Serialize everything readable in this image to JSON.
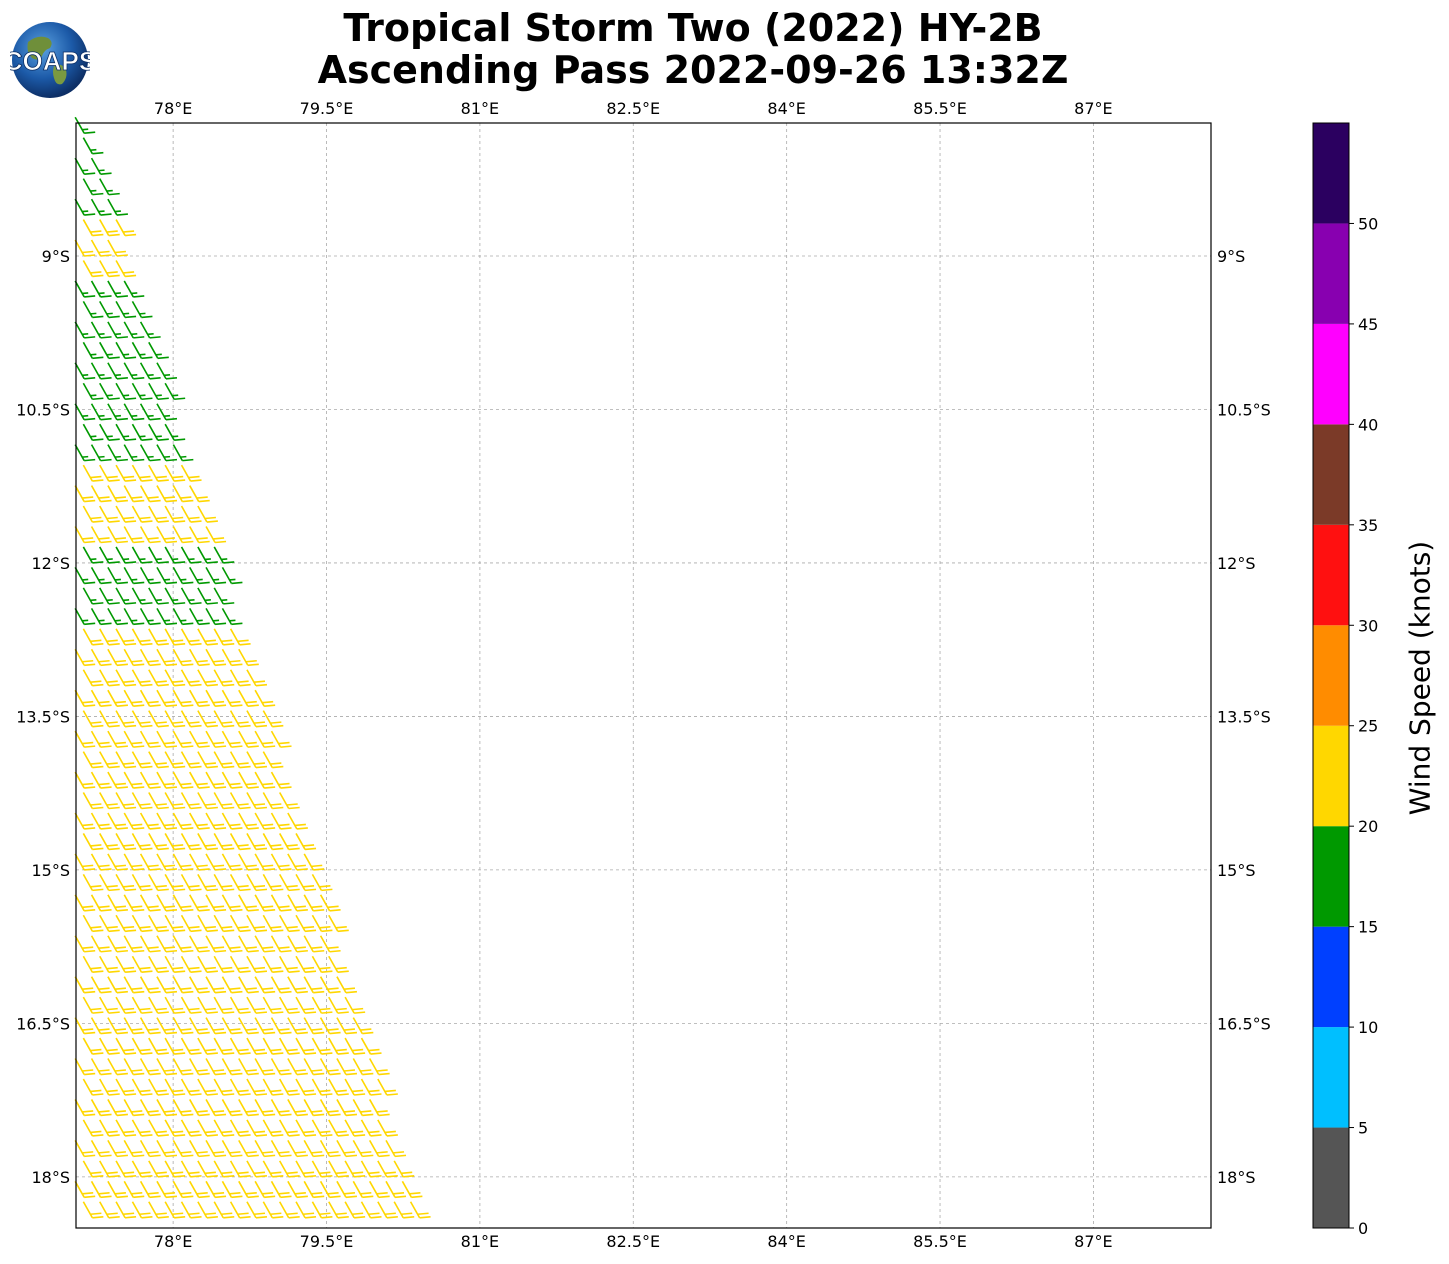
{
  "title": {
    "line1": "Tropical Storm Two (2022) HY-2B",
    "line2": "Ascending Pass 2022-09-26 13:32Z"
  },
  "logo": {
    "text": "COAPS",
    "icon": "globe-icon"
  },
  "chart_data": {
    "type": "wind-barb-map",
    "title": "Tropical Storm Two (2022) HY-2B Ascending Pass 2022-09-26 13:32Z",
    "xlabel": "",
    "ylabel": "",
    "lon_range": [
      77.05,
      88.15
    ],
    "lat_range": [
      -18.5,
      -7.7
    ],
    "lon_ticks": [
      78,
      79.5,
      81,
      82.5,
      84,
      85.5,
      87
    ],
    "lon_tick_labels": [
      "78°E",
      "79.5°E",
      "81°E",
      "82.5°E",
      "84°E",
      "85.5°E",
      "87°E"
    ],
    "lat_ticks": [
      -9,
      -10.5,
      -12,
      -13.5,
      -15,
      -16.5,
      -18
    ],
    "lat_tick_labels": [
      "9°S",
      "10.5°S",
      "12°S",
      "13.5°S",
      "15°S",
      "16.5°S",
      "18°S"
    ],
    "grid": true,
    "swath_edge": [
      [
        -7.7,
        77.2
      ],
      [
        -18.5,
        80.5
      ]
    ],
    "barb_direction": "southeasterly (barbs point toward southeast)",
    "wind_regions": [
      {
        "lat_from": -7.7,
        "lat_to": -8.7,
        "speed_knots": 17,
        "color": "#009900"
      },
      {
        "lat_from": -8.7,
        "lat_to": -9.2,
        "speed_knots": 22,
        "color": "#ffd700"
      },
      {
        "lat_from": -9.2,
        "lat_to": -11.0,
        "speed_knots": 18,
        "color": "#009900"
      },
      {
        "lat_from": -11.0,
        "lat_to": -11.8,
        "speed_knots": 21,
        "color": "#ffd700"
      },
      {
        "lat_from": -11.8,
        "lat_to": -12.7,
        "speed_knots": 19,
        "color": "#009900"
      },
      {
        "lat_from": -12.7,
        "lat_to": -18.5,
        "speed_knots": 23,
        "color": "#ffd700"
      }
    ],
    "colorbar": {
      "label": "Wind Speed (knots)",
      "bounds": [
        0,
        5,
        10,
        15,
        20,
        25,
        30,
        35,
        40,
        45,
        50,
        55
      ],
      "tick_labels": [
        "0",
        "5",
        "10",
        "15",
        "20",
        "25",
        "30",
        "35",
        "40",
        "45",
        "50"
      ],
      "colors": [
        "#555555",
        "#00bfff",
        "#0040ff",
        "#009900",
        "#ffd700",
        "#ff8c00",
        "#ff1010",
        "#7b3a28",
        "#ff00ff",
        "#8800b0",
        "#2b0060"
      ]
    }
  }
}
